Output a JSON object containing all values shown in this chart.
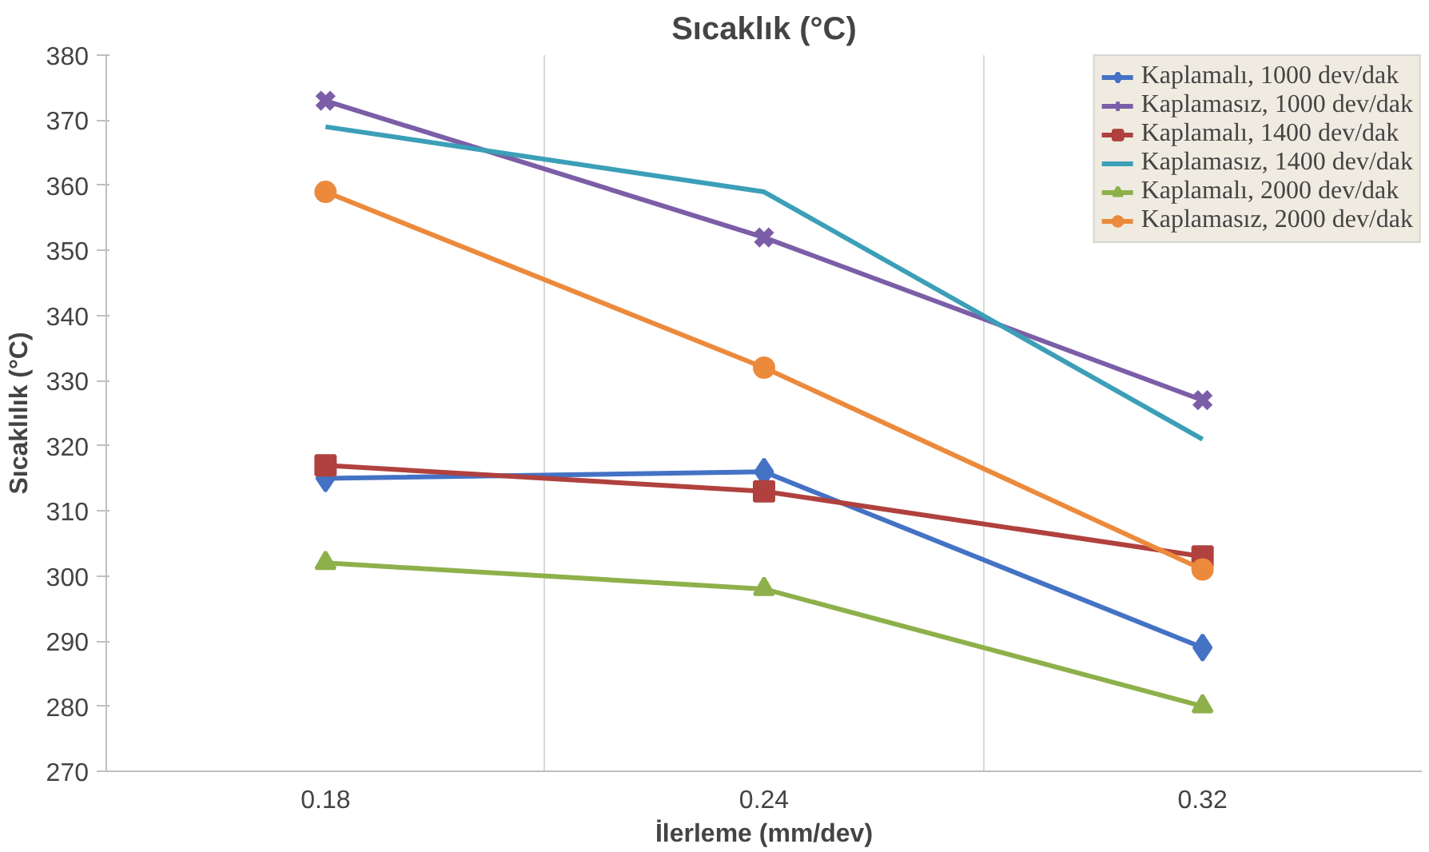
{
  "chart_data": {
    "type": "line",
    "title": "Sıcaklık (°C)",
    "xlabel": "İlerleme (mm/dev)",
    "ylabel": "Sıcaklılık (°C)",
    "categories": [
      "0.18",
      "0.24",
      "0.32"
    ],
    "ylim": [
      270,
      380
    ],
    "yticks": [
      270,
      280,
      290,
      300,
      310,
      320,
      330,
      340,
      350,
      360,
      370,
      380
    ],
    "grid": "x",
    "legend": "top right",
    "series": [
      {
        "name": "Kaplamalı, 1000 dev/dak",
        "color": "#4472c4",
        "marker": "diamond",
        "values": [
          315,
          316,
          289
        ]
      },
      {
        "name": "Kaplamasız, 1000 dev/dak",
        "color": "#7b5ea7",
        "marker": "cross",
        "values": [
          373,
          352,
          327
        ]
      },
      {
        "name": "Kaplamalı, 1400 dev/dak",
        "color": "#b0413e",
        "marker": "square",
        "values": [
          317,
          313,
          303
        ]
      },
      {
        "name": "Kaplamasız, 1400 dev/dak",
        "color": "#3b9fb8",
        "marker": "none",
        "values": [
          369,
          359,
          321
        ]
      },
      {
        "name": "Kaplamalı, 2000 dev/dak",
        "color": "#8eb04b",
        "marker": "triangle",
        "values": [
          302,
          298,
          280
        ]
      },
      {
        "name": "Kaplamasız, 2000 dev/dak",
        "color": "#ec8a3c",
        "marker": "circle",
        "values": [
          359,
          332,
          301
        ]
      }
    ]
  }
}
